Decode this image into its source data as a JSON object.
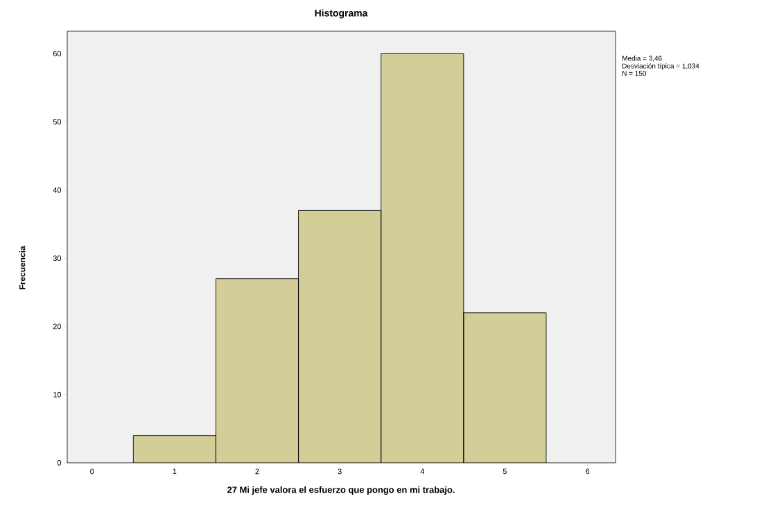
{
  "chart_data": {
    "type": "histogram",
    "title": "Histograma",
    "xlabel": "27 Mi jefe valora el esfuerzo que pongo en mi trabajo.",
    "ylabel": "Frecuencia",
    "bins": [
      0.5,
      1.5,
      2.5,
      3.5,
      4.5,
      5.5
    ],
    "values": [
      4,
      27,
      37,
      60,
      22
    ],
    "color": "#d3ce97",
    "xlim": [
      -0.3,
      6.34
    ],
    "ylim": [
      0,
      63.3
    ],
    "xticks": [
      0,
      1,
      2,
      3,
      4,
      5,
      6
    ],
    "yticks": [
      0,
      10,
      20,
      30,
      40,
      50,
      60
    ],
    "annotations": [
      "Media = 3,46",
      "Desviación típica = 1,034",
      "N = 150"
    ],
    "grid": false
  }
}
